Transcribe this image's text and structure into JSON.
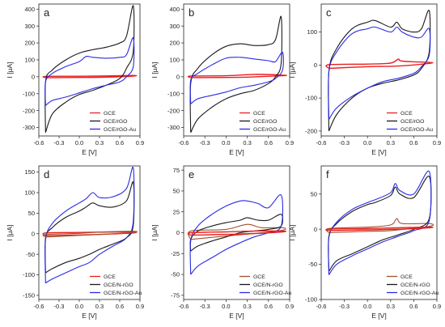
{
  "figure": {
    "background": "#ffffff",
    "colors": {
      "red": "#e8201e",
      "black": "#1a1a1a",
      "blue": "#2a2ae6",
      "brown": "#a0522d"
    }
  },
  "chart_data": [
    {
      "type": "line",
      "panel": "a",
      "xlabel": "E [V]",
      "ylabel": "I [μA]",
      "xlim": [
        -0.6,
        0.9
      ],
      "ylim": [
        -350,
        430
      ],
      "xticks": [
        -0.6,
        -0.3,
        0.0,
        0.3,
        0.6,
        0.9
      ],
      "xtick_labels": [
        "-0.6",
        "-0.3",
        "0.0",
        "0.3",
        "0.6",
        "0.9"
      ],
      "yticks": [
        -300,
        -200,
        -100,
        0,
        100,
        200,
        300,
        400
      ],
      "ytick_labels": [
        "-300",
        "-200",
        "-100",
        "0",
        "100",
        "200",
        "300",
        "400"
      ],
      "legend_position": "bottom-right",
      "series": [
        {
          "name": "GCE",
          "color": "#e8201e",
          "x": [
            -0.5,
            0.0,
            0.4,
            0.8,
            0.8,
            0.4,
            0.0,
            -0.5,
            -0.5
          ],
          "y": [
            -6,
            -4,
            -2,
            4,
            8,
            5,
            3,
            2,
            -6
          ]
        },
        {
          "name": "GCE/rGO",
          "color": "#1a1a1a",
          "x": [
            -0.5,
            -0.4,
            -0.2,
            0.0,
            0.2,
            0.4,
            0.6,
            0.7,
            0.8,
            0.8,
            0.7,
            0.6,
            0.4,
            0.2,
            0.0,
            -0.2,
            -0.4,
            -0.5,
            -0.5
          ],
          "y": [
            -330,
            -220,
            -150,
            -105,
            -80,
            -50,
            -10,
            50,
            150,
            420,
            240,
            200,
            175,
            160,
            140,
            100,
            40,
            -30,
            -330
          ]
        },
        {
          "name": "GCE/rGO-Au",
          "color": "#2a2ae6",
          "x": [
            -0.5,
            -0.4,
            -0.2,
            0.0,
            0.2,
            0.4,
            0.6,
            0.7,
            0.8,
            0.8,
            0.7,
            0.6,
            0.4,
            0.2,
            0.1,
            0.0,
            -0.2,
            -0.4,
            -0.5,
            -0.5
          ],
          "y": [
            -170,
            -140,
            -120,
            -95,
            -70,
            -50,
            -30,
            0,
            60,
            230,
            130,
            115,
            110,
            115,
            120,
            90,
            60,
            20,
            -30,
            -170
          ]
        }
      ]
    },
    {
      "type": "line",
      "panel": "b",
      "xlabel": "E [V]",
      "ylabel": "I [μA]",
      "xlim": [
        -0.6,
        0.9
      ],
      "ylim": [
        -350,
        430
      ],
      "xticks": [
        -0.6,
        -0.3,
        0.0,
        0.3,
        0.6,
        0.9
      ],
      "xtick_labels": [
        "-0.6",
        "-0.3",
        "0.0",
        "0.3",
        "0.6",
        "0.9"
      ],
      "yticks": [
        -300,
        -200,
        -100,
        0,
        100,
        200,
        300,
        400
      ],
      "ytick_labels": [
        "-300",
        "-200",
        "-100",
        "0",
        "100",
        "200",
        "300",
        "400"
      ],
      "legend_position": "bottom-right",
      "series": [
        {
          "name": "GCE",
          "color": "#e8201e",
          "x": [
            -0.5,
            0.0,
            0.3,
            0.8,
            0.8,
            0.4,
            0.0,
            -0.5,
            -0.5
          ],
          "y": [
            -5,
            -4,
            -2,
            6,
            10,
            14,
            6,
            4,
            -5
          ]
        },
        {
          "name": "GCE/rGO",
          "color": "#1a1a1a",
          "x": [
            -0.5,
            -0.4,
            -0.2,
            0.0,
            0.2,
            0.4,
            0.6,
            0.7,
            0.78,
            0.78,
            0.7,
            0.6,
            0.4,
            0.2,
            0.0,
            -0.2,
            -0.4,
            -0.5,
            -0.5
          ],
          "y": [
            -330,
            -250,
            -180,
            -130,
            -100,
            -80,
            -40,
            0,
            80,
            355,
            220,
            190,
            185,
            195,
            180,
            130,
            50,
            -40,
            -330
          ]
        },
        {
          "name": "GCE/rGO-Au",
          "color": "#2a2ae6",
          "x": [
            -0.5,
            -0.4,
            -0.2,
            0.0,
            0.2,
            0.4,
            0.6,
            0.7,
            0.8,
            0.8,
            0.7,
            0.6,
            0.4,
            0.2,
            0.0,
            -0.2,
            -0.4,
            -0.5,
            -0.5
          ],
          "y": [
            -160,
            -130,
            -110,
            -90,
            -65,
            -50,
            -30,
            -10,
            40,
            145,
            90,
            95,
            105,
            115,
            110,
            70,
            20,
            -20,
            -160
          ]
        }
      ]
    },
    {
      "type": "line",
      "panel": "c",
      "xlabel": "E [V]",
      "ylabel": "I [μA]",
      "xlim": [
        -0.6,
        0.9
      ],
      "ylim": [
        -215,
        185
      ],
      "xticks": [
        -0.6,
        -0.3,
        0.0,
        0.3,
        0.6,
        0.9
      ],
      "xtick_labels": [
        "-0.6",
        "-0.3",
        "0.0",
        "0.3",
        "0.6",
        "0.9"
      ],
      "yticks": [
        -200,
        -100,
        0,
        100
      ],
      "ytick_labels": [
        "-200",
        "-100",
        "0",
        "100"
      ],
      "legend_position": "bottom-right",
      "series": [
        {
          "name": "GCE",
          "color": "#e8201e",
          "x": [
            -0.5,
            0.0,
            0.4,
            0.8,
            0.8,
            0.45,
            0.4,
            0.3,
            0.0,
            -0.5,
            -0.5
          ],
          "y": [
            -10,
            -5,
            -3,
            5,
            8,
            12,
            18,
            6,
            3,
            1,
            -10
          ]
        },
        {
          "name": "GCE/rGO",
          "color": "#1a1a1a",
          "x": [
            -0.5,
            -0.4,
            -0.2,
            0.0,
            0.2,
            0.4,
            0.6,
            0.7,
            0.8,
            0.8,
            0.7,
            0.6,
            0.45,
            0.38,
            0.3,
            0.1,
            0.0,
            -0.2,
            -0.4,
            -0.5,
            -0.5
          ],
          "y": [
            -200,
            -150,
            -100,
            -70,
            -55,
            -45,
            -30,
            -10,
            40,
            165,
            110,
            100,
            110,
            130,
            115,
            135,
            130,
            110,
            50,
            -20,
            -200
          ]
        },
        {
          "name": "GCE/rGO-Au",
          "color": "#2a2ae6",
          "x": [
            -0.5,
            -0.4,
            -0.2,
            0.0,
            0.2,
            0.4,
            0.6,
            0.7,
            0.8,
            0.8,
            0.7,
            0.6,
            0.45,
            0.38,
            0.3,
            0.1,
            0.0,
            -0.2,
            -0.4,
            -0.5,
            -0.5
          ],
          "y": [
            -165,
            -130,
            -95,
            -70,
            -50,
            -40,
            -25,
            -5,
            30,
            110,
            85,
            85,
            100,
            115,
            100,
            115,
            110,
            95,
            40,
            -20,
            -165
          ]
        }
      ]
    },
    {
      "type": "line",
      "panel": "d",
      "xlabel": "E [V]",
      "ylabel": "I [μA]",
      "xlim": [
        -0.6,
        0.9
      ],
      "ylim": [
        -160,
        165
      ],
      "xticks": [
        -0.6,
        -0.3,
        0.0,
        0.3,
        0.6,
        0.9
      ],
      "xtick_labels": [
        "-0.6",
        "-0.3",
        "0.0",
        "0.3",
        "0.6",
        "0.9"
      ],
      "yticks": [
        -150,
        -100,
        -50,
        0,
        50,
        100,
        150
      ],
      "ytick_labels": [
        "-150",
        "-100",
        "-50",
        "0",
        "50",
        "100",
        "150"
      ],
      "legend_position": "bottom-right",
      "series": [
        {
          "name": "GCE",
          "color": "#e8201e",
          "x": [
            -0.5,
            0.0,
            0.4,
            0.8,
            0.8,
            0.4,
            0.0,
            -0.5,
            -0.5
          ],
          "y": [
            -5,
            -3,
            -1,
            2,
            4,
            4,
            3,
            2,
            -5
          ]
        },
        {
          "name": "GCE/N-rGO",
          "color": "#1a1a1a",
          "x": [
            -0.5,
            -0.4,
            -0.2,
            0.0,
            0.15,
            0.3,
            0.5,
            0.7,
            0.8,
            0.8,
            0.7,
            0.5,
            0.3,
            0.2,
            0.1,
            0.0,
            -0.2,
            -0.4,
            -0.5,
            -0.5
          ],
          "y": [
            -95,
            -85,
            -70,
            -60,
            -50,
            -38,
            -25,
            -10,
            20,
            125,
            80,
            65,
            68,
            75,
            65,
            55,
            40,
            15,
            -10,
            -95
          ]
        },
        {
          "name": "GCE/N-rGO-Au",
          "color": "#2a2ae6",
          "x": [
            -0.5,
            -0.4,
            -0.2,
            0.0,
            0.15,
            0.3,
            0.5,
            0.7,
            0.8,
            0.8,
            0.7,
            0.5,
            0.3,
            0.2,
            0.1,
            0.0,
            -0.2,
            -0.4,
            -0.5,
            -0.5
          ],
          "y": [
            -120,
            -110,
            -95,
            -80,
            -70,
            -50,
            -30,
            -10,
            30,
            160,
            110,
            90,
            88,
            100,
            85,
            75,
            55,
            25,
            -15,
            -120
          ]
        },
        {
          "name": "",
          "color": "#a0522d",
          "x": [
            -0.5,
            0.0,
            0.4,
            0.8,
            0.8,
            0.3,
            0.0,
            -0.5,
            -0.5
          ],
          "y": [
            -8,
            -4,
            -1,
            3,
            6,
            4,
            1,
            -2,
            -8
          ]
        }
      ]
    },
    {
      "type": "line",
      "panel": "e",
      "xlabel": "E [V]",
      "ylabel": "I [μA]",
      "xlim": [
        -0.6,
        0.9
      ],
      "ylim": [
        -80,
        80
      ],
      "xticks": [
        -0.6,
        -0.3,
        0.0,
        0.3,
        0.6,
        0.9
      ],
      "xtick_labels": [
        "-0.6",
        "-0.3",
        "0.0",
        "0.3",
        "0.6",
        "0.9"
      ],
      "yticks": [
        -75,
        -50,
        -25,
        0,
        25,
        50,
        75
      ],
      "ytick_labels": [
        "-75",
        "-50",
        "-25",
        "0",
        "25",
        "50",
        "75"
      ],
      "legend_position": "bottom-right",
      "series": [
        {
          "name": "GCE",
          "color": "#a0522d",
          "x": [
            -0.5,
            0.0,
            0.4,
            0.8,
            0.8,
            0.5,
            0.3,
            0.0,
            -0.5,
            -0.5
          ],
          "y": [
            -8,
            -4,
            -1,
            3,
            6,
            6,
            10,
            4,
            2,
            -8
          ]
        },
        {
          "name": "GCE/N-rGO",
          "color": "#1a1a1a",
          "x": [
            -0.5,
            -0.4,
            -0.2,
            0.0,
            0.2,
            0.4,
            0.6,
            0.78,
            0.78,
            0.6,
            0.45,
            0.3,
            0.2,
            0.0,
            -0.2,
            -0.4,
            -0.5,
            -0.5
          ],
          "y": [
            -22,
            -16,
            -10,
            -5,
            0,
            2,
            4,
            8,
            22,
            15,
            15,
            18,
            15,
            12,
            8,
            2,
            -8,
            -22
          ]
        },
        {
          "name": "GCE/N-rGO-Au",
          "color": "#2a2ae6",
          "x": [
            -0.5,
            -0.4,
            -0.2,
            0.0,
            0.2,
            0.4,
            0.6,
            0.78,
            0.78,
            0.6,
            0.45,
            0.3,
            0.2,
            0.0,
            -0.2,
            -0.4,
            -0.5,
            -0.5
          ],
          "y": [
            -50,
            -40,
            -30,
            -20,
            -12,
            -5,
            0,
            8,
            45,
            30,
            35,
            38,
            38,
            32,
            22,
            8,
            -10,
            -50
          ]
        },
        {
          "name": "",
          "color": "#e8201e",
          "x": [
            -0.5,
            0.0,
            0.4,
            0.8,
            0.8,
            0.4,
            0.0,
            -0.5,
            -0.5
          ],
          "y": [
            -3,
            -2,
            -1,
            1,
            2,
            2,
            1,
            0,
            -3
          ]
        }
      ]
    },
    {
      "type": "line",
      "panel": "f",
      "xlabel": "E [V]",
      "ylabel": "I [μA]",
      "xlim": [
        -0.6,
        0.9
      ],
      "ylim": [
        -100,
        90
      ],
      "xticks": [
        -0.6,
        -0.3,
        0.0,
        0.3,
        0.6,
        0.9
      ],
      "xtick_labels": [
        "-0.6",
        "-0.3",
        "0.0",
        "0.3",
        "0.6",
        "0.9"
      ],
      "yticks": [
        -100,
        -50,
        0,
        50
      ],
      "ytick_labels": [
        "-100",
        "-50",
        "0",
        "50"
      ],
      "legend_position": "bottom-right",
      "series": [
        {
          "name": "GCE",
          "color": "#a0522d",
          "x": [
            -0.5,
            0.0,
            0.3,
            0.8,
            0.8,
            0.45,
            0.38,
            0.3,
            0.0,
            -0.5,
            -0.5
          ],
          "y": [
            -5,
            -3,
            -2,
            4,
            8,
            8,
            15,
            6,
            3,
            1,
            -5
          ]
        },
        {
          "name": "GCE/N-rGO",
          "color": "#1a1a1a",
          "x": [
            -0.5,
            -0.4,
            -0.2,
            0.0,
            0.2,
            0.4,
            0.6,
            0.8,
            0.8,
            0.6,
            0.42,
            0.36,
            0.3,
            0.1,
            0.0,
            -0.2,
            -0.4,
            -0.5,
            -0.5
          ],
          "y": [
            -60,
            -45,
            -35,
            -25,
            -15,
            -8,
            0,
            15,
            75,
            45,
            50,
            60,
            48,
            38,
            35,
            25,
            8,
            -10,
            -60
          ]
        },
        {
          "name": "GCE/N-rGO-Au",
          "color": "#2a2ae6",
          "x": [
            -0.5,
            -0.4,
            -0.2,
            0.0,
            0.2,
            0.4,
            0.6,
            0.8,
            0.8,
            0.6,
            0.42,
            0.36,
            0.3,
            0.1,
            0.0,
            -0.2,
            -0.4,
            -0.5,
            -0.5
          ],
          "y": [
            -65,
            -50,
            -38,
            -28,
            -18,
            -10,
            -2,
            12,
            82,
            50,
            55,
            65,
            52,
            42,
            38,
            28,
            10,
            -12,
            -65
          ]
        },
        {
          "name": "",
          "color": "#e8201e",
          "x": [
            -0.5,
            0.0,
            0.4,
            0.8,
            0.8,
            0.4,
            0.0,
            -0.5,
            -0.5
          ],
          "y": [
            -2,
            -1,
            0,
            2,
            3,
            2,
            1,
            0,
            -2
          ]
        }
      ]
    }
  ]
}
